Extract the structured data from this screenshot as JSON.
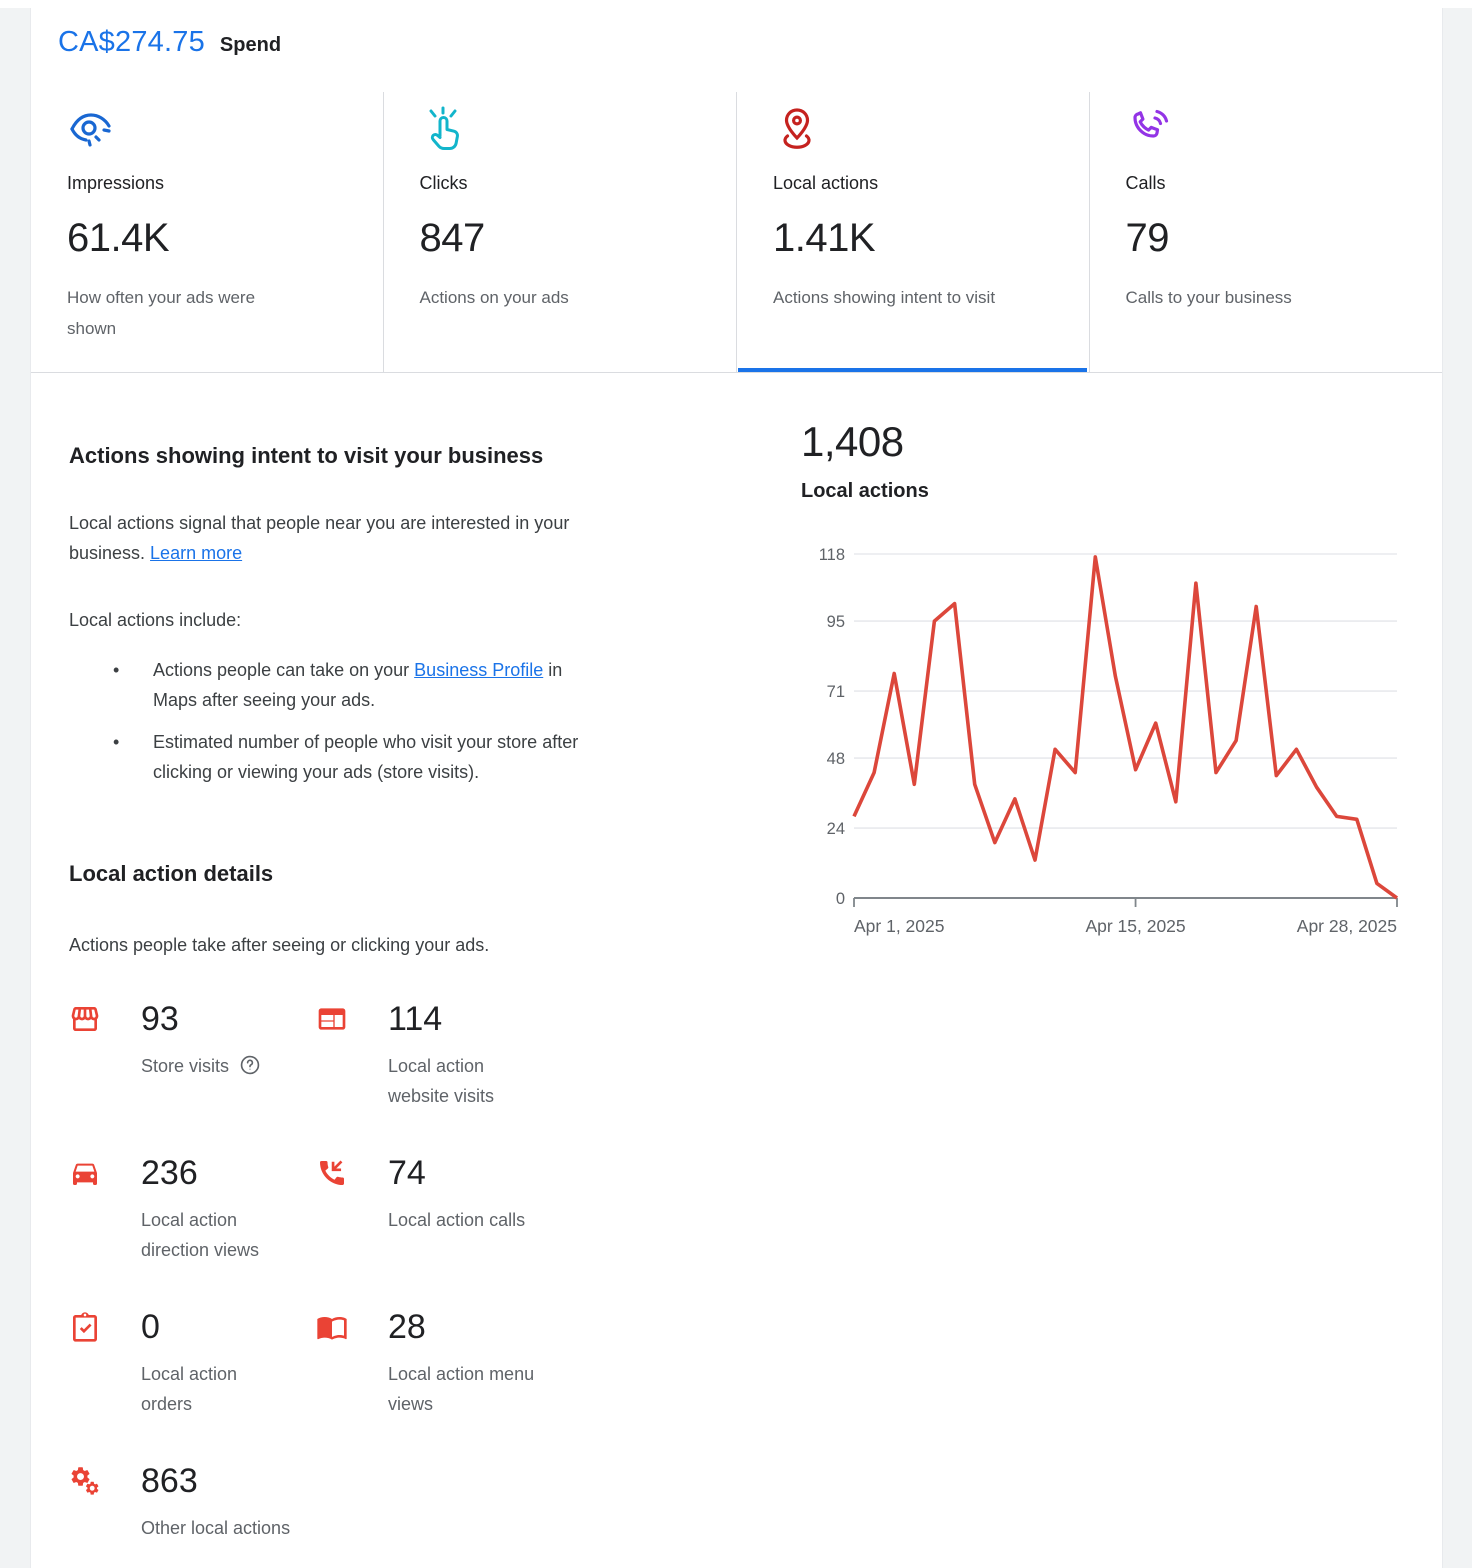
{
  "header": {
    "spend_value": "CA$274.75",
    "spend_label": "Spend"
  },
  "colors": {
    "accent_blue": "#1a73e8",
    "impressions_icon": "#1967d2",
    "clicks_icon": "#12b5cb",
    "local_actions_icon": "#c5221f",
    "calls_icon": "#9334e6",
    "detail_icon_red": "#ea4335",
    "chart_line_red": "#dc473b",
    "text_primary": "#202124",
    "text_secondary": "#5f6368",
    "divider": "#dadce0"
  },
  "metric_cards": [
    {
      "id": "impressions",
      "icon": "eye-impressions-icon",
      "label": "Impressions",
      "value": "61.4K",
      "description": "How often your ads were\nshown",
      "selected": false
    },
    {
      "id": "clicks",
      "icon": "click-hand-icon",
      "label": "Clicks",
      "value": "847",
      "description": "Actions on your ads",
      "selected": false
    },
    {
      "id": "local-actions",
      "icon": "location-pin-icon",
      "label": "Local actions",
      "value": "1.41K",
      "description": "Actions showing intent to visit",
      "selected": true
    },
    {
      "id": "calls",
      "icon": "phone-waves-icon",
      "label": "Calls",
      "value": "79",
      "description": "Calls to your business",
      "selected": false
    }
  ],
  "intent_section": {
    "heading": "Actions showing intent to visit your business",
    "intro_text": "Local actions signal that people near you are interested in your\nbusiness. ",
    "intro_link": "Learn more",
    "include_label": "Local actions include:",
    "bullet1_pre": "Actions people can take on your ",
    "bullet1_link": "Business Profile",
    "bullet1_post": " in\nMaps after seeing your ads.",
    "bullet2": "Estimated number of people who visit your store after\nclicking or viewing your ads (store visits)."
  },
  "details_section": {
    "heading": "Local action details",
    "subheading": "Actions people take after seeing or clicking your ads.",
    "items": [
      {
        "icon": "storefront-icon",
        "value": "93",
        "label": "Store visits",
        "has_help": true
      },
      {
        "icon": "website-icon",
        "value": "114",
        "label": "Local action website visits"
      },
      {
        "icon": "car-directions-icon",
        "value": "236",
        "label": "Local action direction views"
      },
      {
        "icon": "phone-callback-icon",
        "value": "74",
        "label": "Local action calls"
      },
      {
        "icon": "clipboard-check-icon",
        "value": "0",
        "label": "Local action orders"
      },
      {
        "icon": "menu-book-icon",
        "value": "28",
        "label": "Local action menu views"
      },
      {
        "icon": "gears-icon",
        "value": "863",
        "label": "Other local actions"
      }
    ]
  },
  "chart_data": {
    "type": "line",
    "title_value": "1,408",
    "title_label": "Local actions",
    "series_name": "Local actions",
    "dates": [
      "Apr 1, 2025",
      "Apr 2, 2025",
      "Apr 3, 2025",
      "Apr 4, 2025",
      "Apr 5, 2025",
      "Apr 6, 2025",
      "Apr 7, 2025",
      "Apr 8, 2025",
      "Apr 9, 2025",
      "Apr 10, 2025",
      "Apr 11, 2025",
      "Apr 12, 2025",
      "Apr 13, 2025",
      "Apr 14, 2025",
      "Apr 15, 2025",
      "Apr 16, 2025",
      "Apr 17, 2025",
      "Apr 18, 2025",
      "Apr 19, 2025",
      "Apr 20, 2025",
      "Apr 21, 2025",
      "Apr 22, 2025",
      "Apr 23, 2025",
      "Apr 24, 2025",
      "Apr 25, 2025",
      "Apr 26, 2025",
      "Apr 27, 2025",
      "Apr 28, 2025"
    ],
    "values": [
      28,
      43,
      77,
      39,
      95,
      101,
      39,
      19,
      34,
      13,
      51,
      43,
      117,
      76,
      44,
      60,
      33,
      108,
      43,
      54,
      100,
      42,
      51,
      38,
      28,
      27,
      5,
      0
    ],
    "ylim": [
      0,
      118
    ],
    "y_ticks": [
      0,
      24,
      48,
      71,
      95,
      118
    ],
    "x_tick_labels": [
      "Apr 1, 2025",
      "Apr 15, 2025",
      "Apr 28, 2025"
    ],
    "x_tick_indices": [
      0,
      14,
      27
    ],
    "line_color": "#dc473b",
    "grid": true,
    "legend": "none",
    "xlabel": "",
    "ylabel": ""
  }
}
